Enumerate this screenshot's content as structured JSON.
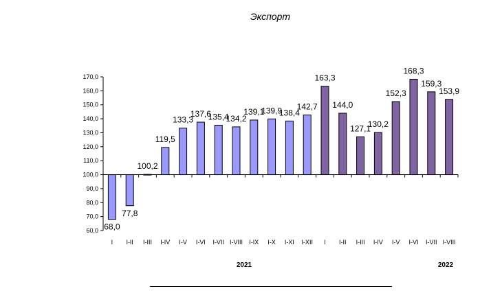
{
  "chart_data": {
    "type": "bar",
    "title": "Экспорт",
    "xlabel": "",
    "ylabel": "",
    "ylim": [
      60,
      170
    ],
    "baseline": 100,
    "yticks": [
      "60,0",
      "70,0",
      "80,0",
      "90,0",
      "100,0",
      "110,0",
      "120,0",
      "130,0",
      "140,0",
      "150,0",
      "160,0",
      "170,0"
    ],
    "categories": [
      "I",
      "I-II",
      "I-III",
      "I-IV",
      "I-V",
      "I-VI",
      "I-VII",
      "I-VIII",
      "I-IX",
      "I-X",
      "I-XI",
      "I-XII",
      "I",
      "I-II",
      "I-III",
      "I-IV",
      "I-V",
      "I-VI",
      "I-VII",
      "I-VIII"
    ],
    "year_groups": [
      {
        "label": "2021",
        "start": 0,
        "end": 11,
        "color": "#9999ff"
      },
      {
        "label": "2022",
        "start": 12,
        "end": 19,
        "color": "#8064a2"
      }
    ],
    "values": [
      68.0,
      77.8,
      100.2,
      119.5,
      133.3,
      137.6,
      135.4,
      134.2,
      139.1,
      139.9,
      138.4,
      142.7,
      163.3,
      144.0,
      127.1,
      130.2,
      152.3,
      168.3,
      159.3,
      153.9
    ],
    "value_labels": [
      "68,0",
      "77,8",
      "100,2",
      "119,5",
      "133,3",
      "137,6",
      "135,4",
      "134,2",
      "139,1",
      "139,9",
      "138,4",
      "142,7",
      "163,3",
      "144,0",
      "127,1",
      "130,2",
      "152,3",
      "168,3",
      "159,3",
      "153,9"
    ],
    "grid": false,
    "legend": "none"
  }
}
